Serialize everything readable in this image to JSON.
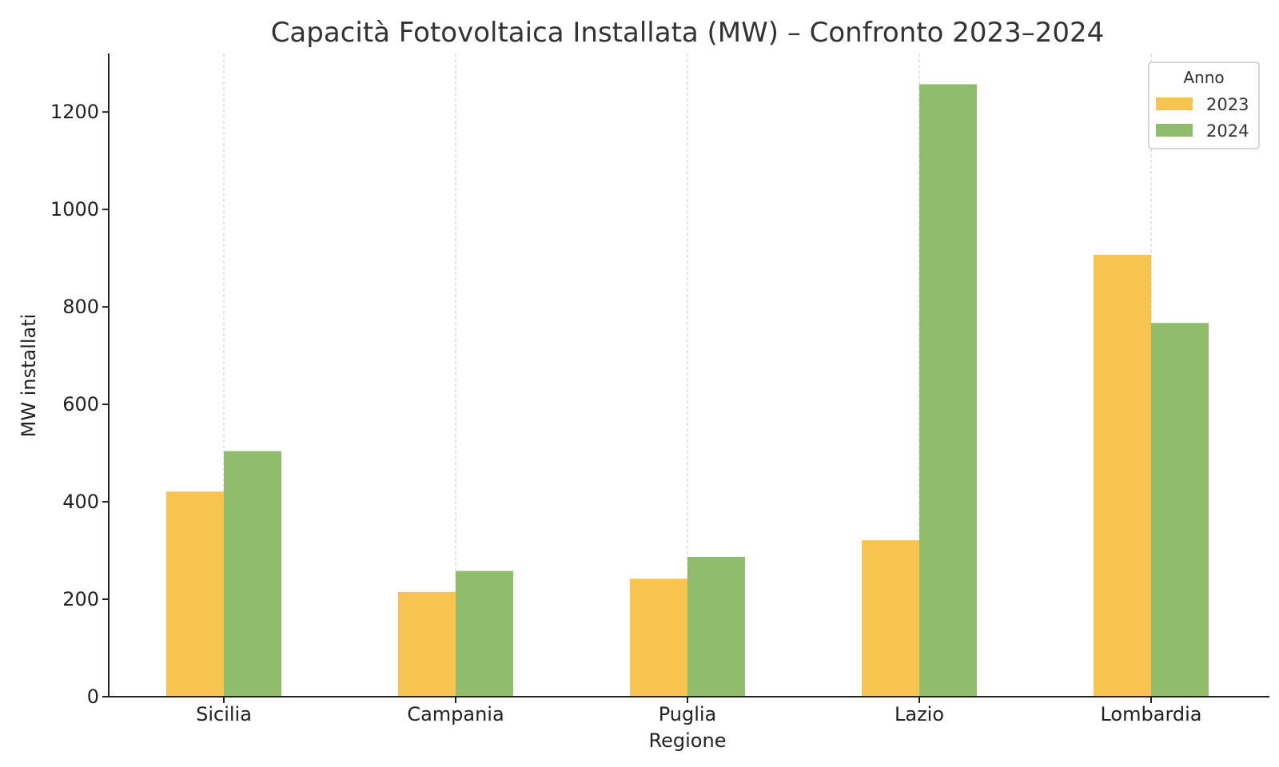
{
  "chart_data": {
    "type": "bar",
    "title": "Capacità Fotovoltaica Installata (MW) – Confronto 2023–2024",
    "xlabel": "Regione",
    "ylabel": "MW installati",
    "categories": [
      "Sicilia",
      "Campania",
      "Puglia",
      "Lazio",
      "Lombardia"
    ],
    "series": [
      {
        "name": "2023",
        "values": [
          421,
          215,
          242,
          321,
          907
        ],
        "color": "#F7C54F"
      },
      {
        "name": "2024",
        "values": [
          504,
          258,
          287,
          1257,
          767
        ],
        "color": "#8FBD6B"
      }
    ],
    "ylim": [
      0,
      1320
    ],
    "yticks": [
      0,
      200,
      400,
      600,
      800,
      1000,
      1200
    ],
    "grid": "vertical dashed at categories",
    "legend": {
      "title": "Anno",
      "position": "top-right"
    }
  }
}
